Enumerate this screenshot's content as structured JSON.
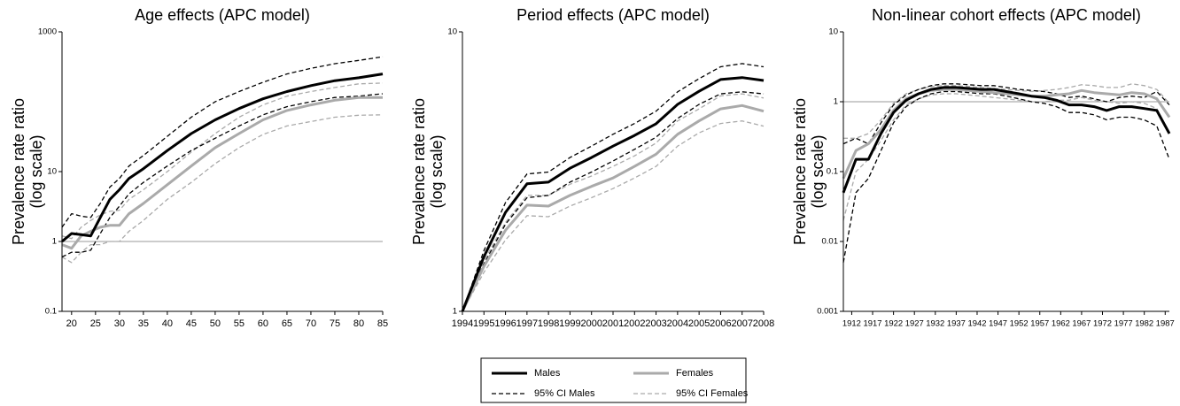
{
  "chart_data": [
    {
      "type": "line",
      "title": "Age effects (APC model)",
      "y_label": [
        "Prevalence rate ratio",
        "(log scale)"
      ],
      "log_y": true,
      "reference_line": 1,
      "x": [
        18,
        20,
        22,
        24,
        26,
        28,
        30,
        32,
        35,
        40,
        45,
        50,
        55,
        60,
        65,
        70,
        75,
        80,
        85
      ],
      "xlim": [
        18,
        85
      ],
      "xticks": [
        20,
        25,
        30,
        35,
        40,
        45,
        50,
        55,
        60,
        65,
        70,
        75,
        80,
        85
      ],
      "ylim": [
        0.1,
        1000
      ],
      "yticks": [
        0.1,
        1,
        10,
        1000
      ],
      "series": [
        {
          "name": "Males",
          "color": "#000000",
          "dashed": false,
          "values": [
            1,
            1.3,
            1.25,
            1.2,
            2.2,
            4,
            5.5,
            8,
            11,
            20,
            35,
            55,
            80,
            110,
            140,
            170,
            200,
            220,
            250
          ]
        },
        {
          "name": "Females",
          "color": "#aaaaaa",
          "dashed": false,
          "values": [
            0.9,
            0.8,
            1.2,
            1.4,
            1.6,
            1.7,
            1.7,
            2.5,
            3.5,
            6.5,
            12,
            22,
            35,
            55,
            75,
            90,
            105,
            115,
            115
          ]
        },
        {
          "name": "95% CI Males",
          "color": "#000000",
          "dashed": true,
          "lower": [
            0.6,
            0.7,
            0.7,
            0.75,
            1.3,
            2.2,
            3.2,
            4.8,
            7,
            12,
            20,
            30,
            45,
            65,
            85,
            100,
            115,
            120,
            130
          ],
          "upper": [
            1.6,
            2.5,
            2.3,
            2.2,
            3.5,
            6,
            8,
            12,
            17,
            32,
            60,
            100,
            140,
            190,
            250,
            300,
            350,
            390,
            440
          ]
        },
        {
          "name": "95% CI Females",
          "color": "#aaaaaa",
          "dashed": true,
          "lower": [
            0.6,
            0.5,
            0.7,
            0.9,
            0.9,
            1,
            1,
            1.4,
            2,
            4,
            7,
            13,
            22,
            34,
            45,
            52,
            60,
            64,
            65
          ],
          "upper": [
            1.2,
            1.1,
            1.6,
            2,
            2.4,
            2.7,
            2.8,
            4,
            5.5,
            10,
            19,
            35,
            60,
            90,
            120,
            140,
            160,
            180,
            185
          ]
        }
      ]
    },
    {
      "type": "line",
      "title": "Period effects (APC model)",
      "y_label": [
        "Prevalence rate ratio",
        "(log scale)"
      ],
      "log_y": true,
      "x": [
        1994,
        1995,
        1996,
        1997,
        1998,
        1999,
        2000,
        2001,
        2002,
        2003,
        2004,
        2005,
        2006,
        2007,
        2008
      ],
      "xlim": [
        1994,
        2008
      ],
      "xticks": [
        1994,
        1995,
        1996,
        1997,
        1998,
        1999,
        2000,
        2001,
        2002,
        2003,
        2004,
        2005,
        2006,
        2007,
        2008
      ],
      "ylim": [
        1,
        10
      ],
      "yticks": [
        1,
        10
      ],
      "series": [
        {
          "color": "#000000",
          "dashed": false,
          "values": [
            1,
            1.57,
            2.26,
            2.86,
            2.9,
            3.25,
            3.55,
            3.9,
            4.26,
            4.69,
            5.5,
            6.13,
            6.75,
            6.86,
            6.7
          ]
        },
        {
          "color": "#aaaaaa",
          "dashed": false,
          "values": [
            1,
            1.45,
            1.95,
            2.4,
            2.38,
            2.6,
            2.8,
            3.0,
            3.3,
            3.65,
            4.3,
            4.8,
            5.3,
            5.45,
            5.2
          ]
        },
        {
          "color": "#000000",
          "dashed": true,
          "lower": [
            1,
            1.48,
            2.05,
            2.55,
            2.6,
            2.9,
            3.15,
            3.45,
            3.8,
            4.2,
            4.9,
            5.5,
            6.0,
            6.1,
            6.0
          ],
          "upper": [
            1,
            1.65,
            2.45,
            3.1,
            3.15,
            3.55,
            3.9,
            4.3,
            4.7,
            5.2,
            6.1,
            6.8,
            7.5,
            7.7,
            7.5
          ]
        },
        {
          "color": "#aaaaaa",
          "dashed": true,
          "lower": [
            1,
            1.38,
            1.8,
            2.2,
            2.18,
            2.38,
            2.55,
            2.75,
            3.0,
            3.3,
            3.9,
            4.35,
            4.7,
            4.8,
            4.6
          ],
          "upper": [
            1,
            1.52,
            2.08,
            2.6,
            2.6,
            2.85,
            3.05,
            3.3,
            3.6,
            4.0,
            4.8,
            5.3,
            5.9,
            6.0,
            5.8
          ]
        }
      ]
    },
    {
      "type": "line",
      "title": "Non-linear cohort effects (APC model)",
      "y_label": [
        "Prevalence rate ratio",
        "(log scale)"
      ],
      "log_y": true,
      "reference_line": 1,
      "x": [
        1910,
        1913,
        1916,
        1919,
        1922,
        1925,
        1928,
        1931,
        1934,
        1937,
        1940,
        1943,
        1946,
        1949,
        1952,
        1955,
        1958,
        1961,
        1964,
        1967,
        1970,
        1973,
        1976,
        1979,
        1982,
        1985,
        1988
      ],
      "xlim": [
        1910,
        1988
      ],
      "xticks": [
        1912,
        1917,
        1922,
        1927,
        1932,
        1937,
        1942,
        1947,
        1952,
        1957,
        1962,
        1967,
        1972,
        1977,
        1982,
        1987
      ],
      "ylim": [
        0.001,
        10
      ],
      "yticks": [
        0.001,
        0.01,
        0.1,
        1,
        10
      ],
      "series": [
        {
          "color": "#000000",
          "dashed": false,
          "values": [
            0.05,
            0.15,
            0.15,
            0.35,
            0.7,
            1.05,
            1.3,
            1.5,
            1.6,
            1.6,
            1.55,
            1.5,
            1.5,
            1.4,
            1.3,
            1.2,
            1.15,
            1.05,
            0.9,
            0.9,
            0.85,
            0.75,
            0.85,
            0.85,
            0.8,
            0.75,
            0.35
          ]
        },
        {
          "color": "#aaaaaa",
          "dashed": false,
          "values": [
            0.08,
            0.2,
            0.25,
            0.4,
            0.75,
            1.1,
            1.3,
            1.45,
            1.5,
            1.5,
            1.45,
            1.4,
            1.35,
            1.3,
            1.25,
            1.2,
            1.2,
            1.25,
            1.3,
            1.45,
            1.35,
            1.3,
            1.25,
            1.35,
            1.3,
            1.1,
            0.6
          ]
        },
        {
          "color": "#000000",
          "dashed": true,
          "lower": [
            0.005,
            0.05,
            0.08,
            0.2,
            0.5,
            0.85,
            1.1,
            1.3,
            1.4,
            1.4,
            1.35,
            1.3,
            1.3,
            1.2,
            1.1,
            1.0,
            0.95,
            0.85,
            0.7,
            0.7,
            0.65,
            0.55,
            0.6,
            0.6,
            0.55,
            0.45,
            0.15
          ],
          "upper": [
            0.25,
            0.3,
            0.25,
            0.5,
            0.9,
            1.25,
            1.5,
            1.7,
            1.8,
            1.8,
            1.75,
            1.7,
            1.7,
            1.6,
            1.5,
            1.45,
            1.4,
            1.3,
            1.15,
            1.2,
            1.1,
            1.0,
            1.15,
            1.2,
            1.15,
            1.4,
            0.9
          ]
        },
        {
          "color": "#aaaaaa",
          "dashed": true,
          "lower": [
            0.02,
            0.1,
            0.15,
            0.28,
            0.55,
            0.9,
            1.1,
            1.25,
            1.3,
            1.3,
            1.25,
            1.2,
            1.15,
            1.1,
            1.05,
            1.0,
            1.0,
            1.05,
            1.05,
            1.15,
            1.05,
            1.0,
            0.95,
            1.0,
            0.95,
            0.8,
            0.35
          ],
          "upper": [
            0.3,
            0.3,
            0.35,
            0.55,
            0.95,
            1.3,
            1.5,
            1.65,
            1.7,
            1.7,
            1.65,
            1.6,
            1.55,
            1.5,
            1.45,
            1.4,
            1.45,
            1.5,
            1.6,
            1.75,
            1.7,
            1.6,
            1.6,
            1.8,
            1.7,
            1.5,
            0.95
          ]
        }
      ]
    }
  ]
}
